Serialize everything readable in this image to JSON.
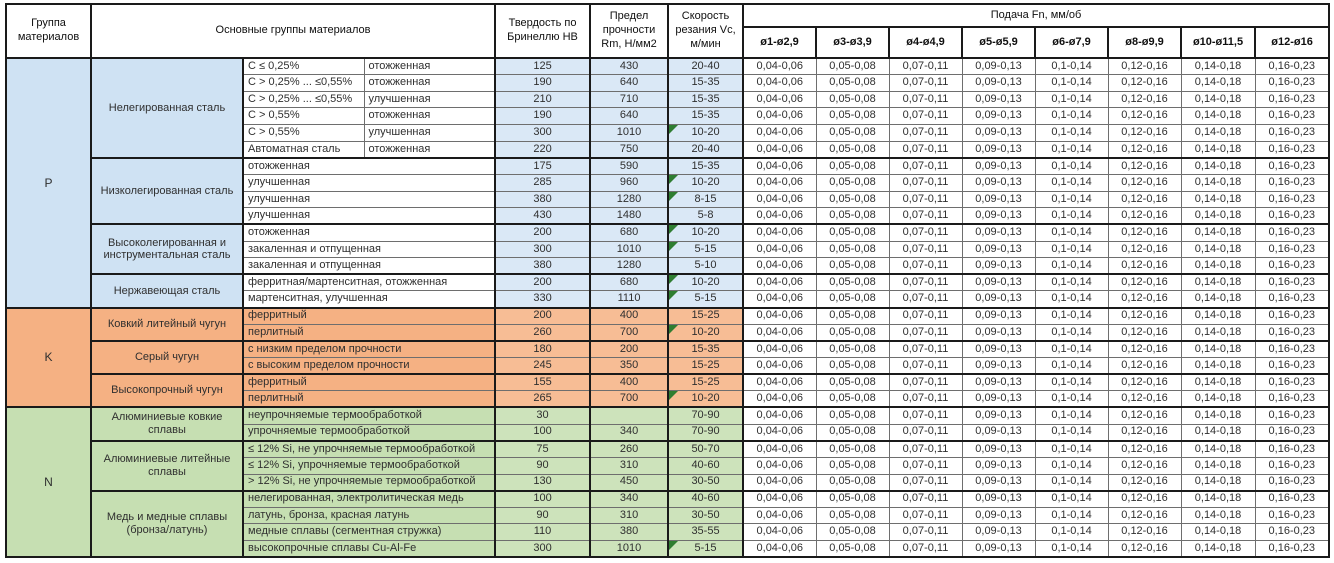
{
  "header": {
    "col_group": "Группа материалов",
    "col_main_groups": "Основные группы материалов",
    "col_hardness": "Твердость по Бринеллю HB",
    "col_strength": "Предел прочности Rm, Н/мм2",
    "col_speed": "Скорость резания Vc, м/мин",
    "col_feed": "Подача Fn, мм/об",
    "feed_diameters": [
      "ø1-ø2,9",
      "ø3-ø3,9",
      "ø4-ø4,9",
      "ø5-ø5,9",
      "ø6-ø7,9",
      "ø8-ø9,9",
      "ø10-ø11,5",
      "ø12-ø16"
    ]
  },
  "colors": {
    "group_p": "#cfe2f3",
    "group_p_numeric": "#dae8f6",
    "group_p_desc": "#ffffff",
    "group_k": "#f5b183",
    "group_k_numeric": "#f7bd95",
    "group_k_desc": "#f5b183",
    "group_n": "#c6dfb2",
    "group_n_numeric": "#cde3bb",
    "group_n_desc": "#c6dfb2",
    "note_marker": "#2f7d31",
    "grid_thin": "#6e6e6e",
    "grid_thick": "#1a1a1a"
  },
  "groups": [
    {
      "code": "P",
      "color": "#cfe2f3",
      "desc_color": "#ffffff",
      "num_color": "#dae8f6",
      "families": [
        {
          "name": "Нелегированная сталь",
          "rows": [
            {
              "desc1": "C ≤ 0,25%",
              "desc2": "отожженная",
              "hb": "125",
              "rm": "430",
              "vc": "20-40",
              "marker": false,
              "feeds": [
                "0,04-0,06",
                "0,05-0,08",
                "0,07-0,11",
                "0,09-0,13",
                "0,1-0,14",
                "0,12-0,16",
                "0,14-0,18",
                "0,16-0,23"
              ]
            },
            {
              "desc1": "C > 0,25% ... ≤0,55%",
              "desc2": "отожженная",
              "hb": "190",
              "rm": "640",
              "vc": "15-35",
              "marker": false,
              "feeds": [
                "0,04-0,06",
                "0,05-0,08",
                "0,07-0,11",
                "0,09-0,13",
                "0,1-0,14",
                "0,12-0,16",
                "0,14-0,18",
                "0,16-0,23"
              ]
            },
            {
              "desc1": "C > 0,25% ... ≤0,55%",
              "desc2": "улучшенная",
              "hb": "210",
              "rm": "710",
              "vc": "15-35",
              "marker": false,
              "feeds": [
                "0,04-0,06",
                "0,05-0,08",
                "0,07-0,11",
                "0,09-0,13",
                "0,1-0,14",
                "0,12-0,16",
                "0,14-0,18",
                "0,16-0,23"
              ]
            },
            {
              "desc1": "C > 0,55%",
              "desc2": "отожженная",
              "hb": "190",
              "rm": "640",
              "vc": "15-35",
              "marker": false,
              "feeds": [
                "0,04-0,06",
                "0,05-0,08",
                "0,07-0,11",
                "0,09-0,13",
                "0,1-0,14",
                "0,12-0,16",
                "0,14-0,18",
                "0,16-0,23"
              ]
            },
            {
              "desc1": "C > 0,55%",
              "desc2": "улучшенная",
              "hb": "300",
              "rm": "1010",
              "vc": "10-20",
              "marker": true,
              "feeds": [
                "0,04-0,06",
                "0,05-0,08",
                "0,07-0,11",
                "0,09-0,13",
                "0,1-0,14",
                "0,12-0,16",
                "0,14-0,18",
                "0,16-0,23"
              ]
            },
            {
              "desc1": "Автоматная сталь",
              "desc2": "отожженная",
              "hb": "220",
              "rm": "750",
              "vc": "20-40",
              "marker": false,
              "feeds": [
                "0,04-0,06",
                "0,05-0,08",
                "0,07-0,11",
                "0,09-0,13",
                "0,1-0,14",
                "0,12-0,16",
                "0,14-0,18",
                "0,16-0,23"
              ]
            }
          ]
        },
        {
          "name": "Низколегированная сталь",
          "rows": [
            {
              "desc": "отожженная",
              "hb": "175",
              "rm": "590",
              "vc": "15-35",
              "marker": false,
              "feeds": [
                "0,04-0,06",
                "0,05-0,08",
                "0,07-0,11",
                "0,09-0,13",
                "0,1-0,14",
                "0,12-0,16",
                "0,14-0,18",
                "0,16-0,23"
              ]
            },
            {
              "desc": "улучшенная",
              "hb": "285",
              "rm": "960",
              "vc": "10-20",
              "marker": true,
              "feeds": [
                "0,04-0,06",
                "0,05-0,08",
                "0,07-0,11",
                "0,09-0,13",
                "0,1-0,14",
                "0,12-0,16",
                "0,14-0,18",
                "0,16-0,23"
              ]
            },
            {
              "desc": "улучшенная",
              "hb": "380",
              "rm": "1280",
              "vc": "8-15",
              "marker": true,
              "feeds": [
                "0,04-0,06",
                "0,05-0,08",
                "0,07-0,11",
                "0,09-0,13",
                "0,1-0,14",
                "0,12-0,16",
                "0,14-0,18",
                "0,16-0,23"
              ]
            },
            {
              "desc": "улучшенная",
              "hb": "430",
              "rm": "1480",
              "vc": "5-8",
              "marker": false,
              "feeds": [
                "0,04-0,06",
                "0,05-0,08",
                "0,07-0,11",
                "0,09-0,13",
                "0,1-0,14",
                "0,12-0,16",
                "0,14-0,18",
                "0,16-0,23"
              ]
            }
          ]
        },
        {
          "name": "Высоколегированная и инструментальная сталь",
          "rows": [
            {
              "desc": "отожженная",
              "hb": "200",
              "rm": "680",
              "vc": "10-20",
              "marker": true,
              "feeds": [
                "0,04-0,06",
                "0,05-0,08",
                "0,07-0,11",
                "0,09-0,13",
                "0,1-0,14",
                "0,12-0,16",
                "0,14-0,18",
                "0,16-0,23"
              ]
            },
            {
              "desc": "закаленная и отпущенная",
              "hb": "300",
              "rm": "1010",
              "vc": "5-15",
              "marker": true,
              "feeds": [
                "0,04-0,06",
                "0,05-0,08",
                "0,07-0,11",
                "0,09-0,13",
                "0,1-0,14",
                "0,12-0,16",
                "0,14-0,18",
                "0,16-0,23"
              ]
            },
            {
              "desc": "закаленная и отпущенная",
              "hb": "380",
              "rm": "1280",
              "vc": "5-10",
              "marker": false,
              "feeds": [
                "0,04-0,06",
                "0,05-0,08",
                "0,07-0,11",
                "0,09-0,13",
                "0,1-0,14",
                "0,12-0,16",
                "0,14-0,18",
                "0,16-0,23"
              ]
            }
          ]
        },
        {
          "name": "Нержавеющая сталь",
          "rows": [
            {
              "desc": "ферритная/мартенситная, отожженная",
              "hb": "200",
              "rm": "680",
              "vc": "10-20",
              "marker": true,
              "feeds": [
                "0,04-0,06",
                "0,05-0,08",
                "0,07-0,11",
                "0,09-0,13",
                "0,1-0,14",
                "0,12-0,16",
                "0,14-0,18",
                "0,16-0,23"
              ]
            },
            {
              "desc": "мартенситная, улучшенная",
              "hb": "330",
              "rm": "1110",
              "vc": "5-15",
              "marker": true,
              "feeds": [
                "0,04-0,06",
                "0,05-0,08",
                "0,07-0,11",
                "0,09-0,13",
                "0,1-0,14",
                "0,12-0,16",
                "0,14-0,18",
                "0,16-0,23"
              ]
            }
          ]
        }
      ]
    },
    {
      "code": "K",
      "color": "#f5b183",
      "desc_color": "#f5b183",
      "num_color": "#f7bd95",
      "families": [
        {
          "name": "Ковкий литейный чугун",
          "rows": [
            {
              "desc": "ферритный",
              "hb": "200",
              "rm": "400",
              "vc": "15-25",
              "marker": false,
              "feeds": [
                "0,04-0,06",
                "0,05-0,08",
                "0,07-0,11",
                "0,09-0,13",
                "0,1-0,14",
                "0,12-0,16",
                "0,14-0,18",
                "0,16-0,23"
              ]
            },
            {
              "desc": "перлитный",
              "hb": "260",
              "rm": "700",
              "vc": "10-20",
              "marker": true,
              "feeds": [
                "0,04-0,06",
                "0,05-0,08",
                "0,07-0,11",
                "0,09-0,13",
                "0,1-0,14",
                "0,12-0,16",
                "0,14-0,18",
                "0,16-0,23"
              ]
            }
          ]
        },
        {
          "name": "Серый чугун",
          "rows": [
            {
              "desc": "с низким пределом прочности",
              "hb": "180",
              "rm": "200",
              "vc": "15-35",
              "marker": false,
              "feeds": [
                "0,04-0,06",
                "0,05-0,08",
                "0,07-0,11",
                "0,09-0,13",
                "0,1-0,14",
                "0,12-0,16",
                "0,14-0,18",
                "0,16-0,23"
              ]
            },
            {
              "desc": "с высоким пределом прочности",
              "hb": "245",
              "rm": "350",
              "vc": "15-25",
              "marker": false,
              "feeds": [
                "0,04-0,06",
                "0,05-0,08",
                "0,07-0,11",
                "0,09-0,13",
                "0,1-0,14",
                "0,12-0,16",
                "0,14-0,18",
                "0,16-0,23"
              ]
            }
          ]
        },
        {
          "name": "Высокопрочный чугун",
          "rows": [
            {
              "desc": "ферритный",
              "hb": "155",
              "rm": "400",
              "vc": "15-25",
              "marker": false,
              "feeds": [
                "0,04-0,06",
                "0,05-0,08",
                "0,07-0,11",
                "0,09-0,13",
                "0,1-0,14",
                "0,12-0,16",
                "0,14-0,18",
                "0,16-0,23"
              ]
            },
            {
              "desc": "перлитный",
              "hb": "265",
              "rm": "700",
              "vc": "10-20",
              "marker": true,
              "feeds": [
                "0,04-0,06",
                "0,05-0,08",
                "0,07-0,11",
                "0,09-0,13",
                "0,1-0,14",
                "0,12-0,16",
                "0,14-0,18",
                "0,16-0,23"
              ]
            }
          ]
        }
      ]
    },
    {
      "code": "N",
      "color": "#c6dfb2",
      "desc_color": "#c6dfb2",
      "num_color": "#cde3bb",
      "families": [
        {
          "name": "Алюминиевые ковкие сплавы",
          "rows": [
            {
              "desc": "неупрочняемые термообработкой",
              "hb": "30",
              "rm": "",
              "vc": "70-90",
              "marker": false,
              "feeds": [
                "0,04-0,06",
                "0,05-0,08",
                "0,07-0,11",
                "0,09-0,13",
                "0,1-0,14",
                "0,12-0,16",
                "0,14-0,18",
                "0,16-0,23"
              ]
            },
            {
              "desc": "упрочняемые термообработкой",
              "hb": "100",
              "rm": "340",
              "vc": "70-90",
              "marker": false,
              "feeds": [
                "0,04-0,06",
                "0,05-0,08",
                "0,07-0,11",
                "0,09-0,13",
                "0,1-0,14",
                "0,12-0,16",
                "0,14-0,18",
                "0,16-0,23"
              ]
            }
          ]
        },
        {
          "name": "Алюминиевые литейные сплавы",
          "rows": [
            {
              "desc": "≤ 12% Si, не упрочняемые термообработкой",
              "hb": "75",
              "rm": "260",
              "vc": "50-70",
              "marker": false,
              "feeds": [
                "0,04-0,06",
                "0,05-0,08",
                "0,07-0,11",
                "0,09-0,13",
                "0,1-0,14",
                "0,12-0,16",
                "0,14-0,18",
                "0,16-0,23"
              ]
            },
            {
              "desc": "≤ 12% Si, упрочняемые термообработкой",
              "hb": "90",
              "rm": "310",
              "vc": "40-60",
              "marker": false,
              "feeds": [
                "0,04-0,06",
                "0,05-0,08",
                "0,07-0,11",
                "0,09-0,13",
                "0,1-0,14",
                "0,12-0,16",
                "0,14-0,18",
                "0,16-0,23"
              ]
            },
            {
              "desc": "> 12% Si, не упрочняемые термообработкой",
              "hb": "130",
              "rm": "450",
              "vc": "30-50",
              "marker": false,
              "feeds": [
                "0,04-0,06",
                "0,05-0,08",
                "0,07-0,11",
                "0,09-0,13",
                "0,1-0,14",
                "0,12-0,16",
                "0,14-0,18",
                "0,16-0,23"
              ]
            }
          ]
        },
        {
          "name": "Медь и медные сплавы (бронза/латунь)",
          "rows": [
            {
              "desc": "нелегированная, электролитическая медь",
              "hb": "100",
              "rm": "340",
              "vc": "40-60",
              "marker": false,
              "feeds": [
                "0,04-0,06",
                "0,05-0,08",
                "0,07-0,11",
                "0,09-0,13",
                "0,1-0,14",
                "0,12-0,16",
                "0,14-0,18",
                "0,16-0,23"
              ]
            },
            {
              "desc": "латунь, бронза, красная латунь",
              "hb": "90",
              "rm": "310",
              "vc": "30-50",
              "marker": false,
              "feeds": [
                "0,04-0,06",
                "0,05-0,08",
                "0,07-0,11",
                "0,09-0,13",
                "0,1-0,14",
                "0,12-0,16",
                "0,14-0,18",
                "0,16-0,23"
              ]
            },
            {
              "desc": "медные сплавы (сегментная стружка)",
              "hb": "110",
              "rm": "380",
              "vc": "35-55",
              "marker": false,
              "feeds": [
                "0,04-0,06",
                "0,05-0,08",
                "0,07-0,11",
                "0,09-0,13",
                "0,1-0,14",
                "0,12-0,16",
                "0,14-0,18",
                "0,16-0,23"
              ]
            },
            {
              "desc": "высокопрочные сплавы Cu-Al-Fe",
              "hb": "300",
              "rm": "1010",
              "vc": "5-15",
              "marker": true,
              "feeds": [
                "0,04-0,06",
                "0,05-0,08",
                "0,07-0,11",
                "0,09-0,13",
                "0,1-0,14",
                "0,12-0,16",
                "0,14-0,18",
                "0,16-0,23"
              ]
            }
          ]
        }
      ]
    }
  ]
}
